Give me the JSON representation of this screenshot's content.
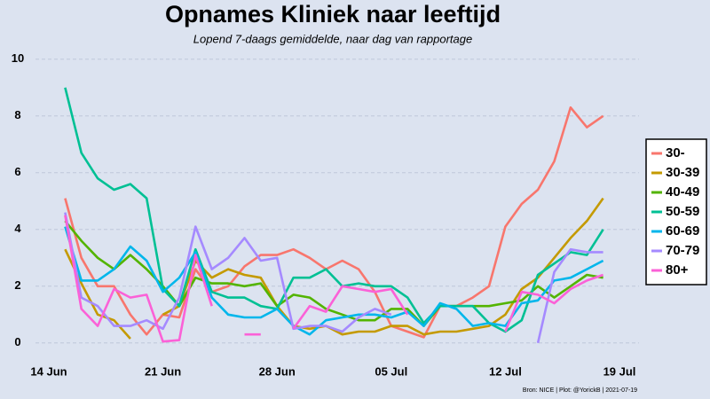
{
  "chart_data": {
    "type": "line",
    "title": "Opnames Kliniek naar leeftijd",
    "subtitle": "Lopend 7-daags gemiddelde, naar dag van rapportage",
    "caption": "Bron: NICE | Plot: @YorickB  |  2021-07-19",
    "x": [
      "15 Jun",
      "16 Jun",
      "17 Jun",
      "18 Jun",
      "19 Jun",
      "20 Jun",
      "21 Jun",
      "22 Jun",
      "23 Jun",
      "24 Jun",
      "25 Jun",
      "26 Jun",
      "27 Jun",
      "28 Jun",
      "29 Jun",
      "30 Jun",
      "01 Jul",
      "02 Jul",
      "03 Jul",
      "04 Jul",
      "05 Jul",
      "06 Jul",
      "07 Jul",
      "08 Jul",
      "09 Jul",
      "10 Jul",
      "11 Jul",
      "12 Jul",
      "13 Jul",
      "14 Jul",
      "15 Jul",
      "16 Jul",
      "17 Jul",
      "18 Jul"
    ],
    "xlim": [
      "14 Jun",
      "19 Jul"
    ],
    "xticks": [
      "14 Jun",
      "21 Jun",
      "28 Jun",
      "05 Jul",
      "12 Jul",
      "19 Jul"
    ],
    "ylim": [
      -0.6,
      10.4
    ],
    "yticks": [
      0,
      2,
      4,
      6,
      8,
      10
    ],
    "grid": true,
    "legend": "right",
    "series": [
      {
        "name": "30-",
        "color": "#f8766d",
        "values": [
          5.1,
          3.0,
          2.0,
          2.0,
          1.0,
          0.3,
          1.0,
          0.9,
          2.6,
          1.8,
          2.0,
          2.7,
          3.1,
          3.1,
          3.3,
          3.0,
          2.6,
          2.9,
          2.6,
          1.8,
          0.6,
          0.4,
          0.2,
          1.3,
          1.3,
          1.6,
          2.0,
          4.1,
          4.9,
          5.4,
          6.4,
          8.3,
          7.6,
          8.0
        ]
      },
      {
        "name": "30-39",
        "color": "#c49a00",
        "values": [
          3.3,
          2.1,
          1.0,
          0.8,
          0.15,
          null,
          1.0,
          1.3,
          2.9,
          2.3,
          2.6,
          2.4,
          2.3,
          1.3,
          0.6,
          0.5,
          0.6,
          0.3,
          0.4,
          0.4,
          0.6,
          0.6,
          0.3,
          0.4,
          0.4,
          0.5,
          0.6,
          1.0,
          1.9,
          2.3,
          3.0,
          3.7,
          4.3,
          5.1
        ]
      },
      {
        "name": "40-49",
        "color": "#53b400",
        "values": [
          4.3,
          3.6,
          3.0,
          2.6,
          3.1,
          2.6,
          2.0,
          1.3,
          2.3,
          2.1,
          2.1,
          2.0,
          2.1,
          1.3,
          1.7,
          1.6,
          1.2,
          1.0,
          0.8,
          0.8,
          1.2,
          1.2,
          0.6,
          1.3,
          1.3,
          1.3,
          1.3,
          1.4,
          1.5,
          2.0,
          1.6,
          2.0,
          2.4,
          2.3
        ]
      },
      {
        "name": "50-59",
        "color": "#00c094",
        "values": [
          9.0,
          6.7,
          5.8,
          5.4,
          5.6,
          5.1,
          1.9,
          1.3,
          3.3,
          1.8,
          1.6,
          1.6,
          1.3,
          1.2,
          2.3,
          2.3,
          2.6,
          2.0,
          2.1,
          2.0,
          2.0,
          1.6,
          0.7,
          1.3,
          1.3,
          1.3,
          0.7,
          0.4,
          0.8,
          2.4,
          2.8,
          3.2,
          3.1,
          4.0
        ]
      },
      {
        "name": "60-69",
        "color": "#00b6eb",
        "values": [
          4.1,
          2.2,
          2.2,
          2.6,
          3.4,
          2.9,
          1.8,
          2.3,
          3.2,
          1.6,
          1.0,
          0.9,
          0.9,
          1.2,
          0.6,
          0.3,
          0.8,
          0.9,
          1.0,
          1.0,
          0.9,
          1.1,
          0.6,
          1.4,
          1.2,
          0.6,
          0.7,
          0.6,
          1.4,
          1.5,
          2.2,
          2.3,
          2.6,
          2.9
        ]
      },
      {
        "name": "70-79",
        "color": "#a58aff",
        "values": [
          4.6,
          1.6,
          1.3,
          0.6,
          0.6,
          0.8,
          0.5,
          1.6,
          4.1,
          2.6,
          3.0,
          3.7,
          2.9,
          3.0,
          0.5,
          0.6,
          0.6,
          0.4,
          0.9,
          1.2,
          1.0,
          null,
          null,
          null,
          null,
          null,
          null,
          null,
          null,
          0.0,
          2.5,
          3.3,
          3.2,
          3.2
        ]
      },
      {
        "name": "80+",
        "color": "#fb61d7",
        "values": [
          4.5,
          1.2,
          0.6,
          1.9,
          1.6,
          1.7,
          0.05,
          0.1,
          3.1,
          1.3,
          null,
          0.3,
          0.3,
          null,
          0.5,
          1.3,
          1.1,
          2.0,
          1.9,
          1.8,
          1.9,
          1.0,
          null,
          null,
          null,
          null,
          null,
          0.4,
          1.8,
          1.7,
          1.4,
          1.9,
          2.2,
          2.4
        ]
      }
    ]
  }
}
